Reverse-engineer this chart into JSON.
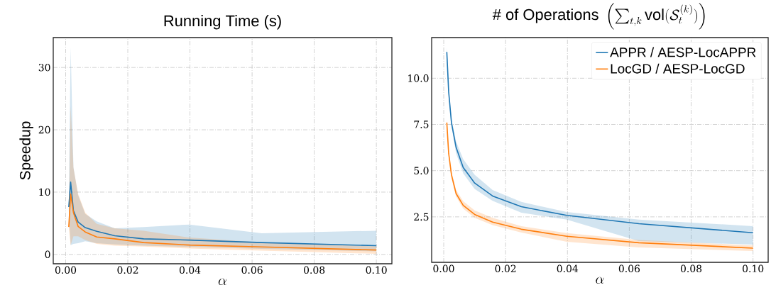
{
  "chart_data": [
    {
      "type": "line",
      "title": "Running Time (s)",
      "xlabel": "\\alpha",
      "ylabel": "Speedup",
      "x": [
        0.001,
        0.0016,
        0.0025,
        0.004,
        0.0063,
        0.01,
        0.0158,
        0.0251,
        0.0398,
        0.0631,
        0.1
      ],
      "series": [
        {
          "color": "#1f77b4",
          "values": [
            7.6,
            11.6,
            7.0,
            5.2,
            4.3,
            3.7,
            3.0,
            2.5,
            2.3,
            1.9,
            1.4
          ],
          "upper": [
            8.0,
            33.2,
            14.0,
            9.5,
            6.5,
            5.3,
            4.2,
            4.4,
            4.8,
            3.4,
            3.8
          ],
          "lower": [
            7.0,
            1.5,
            1.7,
            1.8,
            2.1,
            1.8,
            1.6,
            1.4,
            1.2,
            0.9,
            0.5
          ]
        },
        {
          "color": "#ff7f0e",
          "values": [
            4.4,
            9.7,
            6.7,
            4.5,
            3.6,
            2.8,
            2.5,
            1.9,
            1.5,
            1.2,
            0.7
          ],
          "upper": [
            4.6,
            23.8,
            13.9,
            9.7,
            6.7,
            4.9,
            4.2,
            3.8,
            2.7,
            1.9,
            1.3
          ],
          "lower": [
            4.3,
            1.5,
            2.9,
            2.9,
            2.3,
            1.7,
            1.4,
            1.25,
            0.95,
            0.6,
            0.1
          ]
        }
      ],
      "xlim": [
        -0.004,
        0.105
      ],
      "ylim": [
        -1.5,
        34.8
      ],
      "xticks": [
        {
          "value": 0,
          "label": "0.00"
        },
        {
          "value": 0.02,
          "label": "0.02"
        },
        {
          "value": 0.04,
          "label": "0.04"
        },
        {
          "value": 0.06,
          "label": "0.06"
        },
        {
          "value": 0.08,
          "label": "0.08"
        },
        {
          "value": 0.1,
          "label": "0.10"
        }
      ],
      "yticks": [
        0,
        10,
        20,
        30
      ],
      "grid": true,
      "line_style": "solid",
      "marker": "none"
    },
    {
      "type": "line",
      "title": "\\#\\text{ of Operations }\\left(\\sum_{t,k}\\mathrm{vol}(\\mathcal{S}_t^{(k)})\\right)",
      "xlabel": "\\alpha",
      "x": [
        0.001,
        0.0016,
        0.0025,
        0.004,
        0.0063,
        0.01,
        0.0158,
        0.0251,
        0.0398,
        0.0631,
        0.1
      ],
      "series": [
        {
          "name": "APPR / AESP-LocAPPR",
          "color": "#1f77b4",
          "values": [
            11.42,
            9.27,
            7.6,
            6.26,
            5.17,
            4.33,
            3.63,
            3.05,
            2.58,
            2.13,
            1.64
          ],
          "upper": [
            11.68,
            9.46,
            7.8,
            6.58,
            5.62,
            4.78,
            3.95,
            3.31,
            2.76,
            2.35,
            2.0
          ],
          "lower": [
            11.2,
            9.08,
            7.41,
            5.94,
            4.85,
            4.01,
            3.37,
            2.73,
            2.35,
            1.19,
            1.0
          ]
        },
        {
          "name": "LocGD / AESP-LocGD",
          "color": "#ff7f0e",
          "values": [
            7.6,
            5.94,
            4.78,
            3.76,
            3.12,
            2.63,
            2.22,
            1.83,
            1.45,
            1.1,
            0.81
          ],
          "upper": [
            7.76,
            6.1,
            4.95,
            3.95,
            3.35,
            2.85,
            2.45,
            2.0,
            1.62,
            1.25,
            0.95
          ],
          "lower": [
            7.45,
            5.8,
            4.6,
            3.6,
            2.95,
            2.45,
            2.05,
            1.65,
            1.15,
            0.85,
            0.65
          ]
        }
      ],
      "xlim": [
        -0.0039,
        0.1049
      ],
      "ylim": [
        0.04,
        12.2
      ],
      "xticks": [
        {
          "value": 0,
          "label": "0.00"
        },
        {
          "value": 0.02,
          "label": "0.02"
        },
        {
          "value": 0.04,
          "label": "0.04"
        },
        {
          "value": 0.06,
          "label": "0.06"
        },
        {
          "value": 0.08,
          "label": "0.08"
        },
        {
          "value": 0.1,
          "label": "0.10"
        }
      ],
      "yticks": [
        2.5,
        {
          "value": 5,
          "label": "5.0"
        },
        7.5,
        {
          "value": 10,
          "label": "10.0"
        }
      ],
      "grid": true,
      "legend": "top right",
      "line_style": "solid",
      "marker": "none"
    }
  ]
}
